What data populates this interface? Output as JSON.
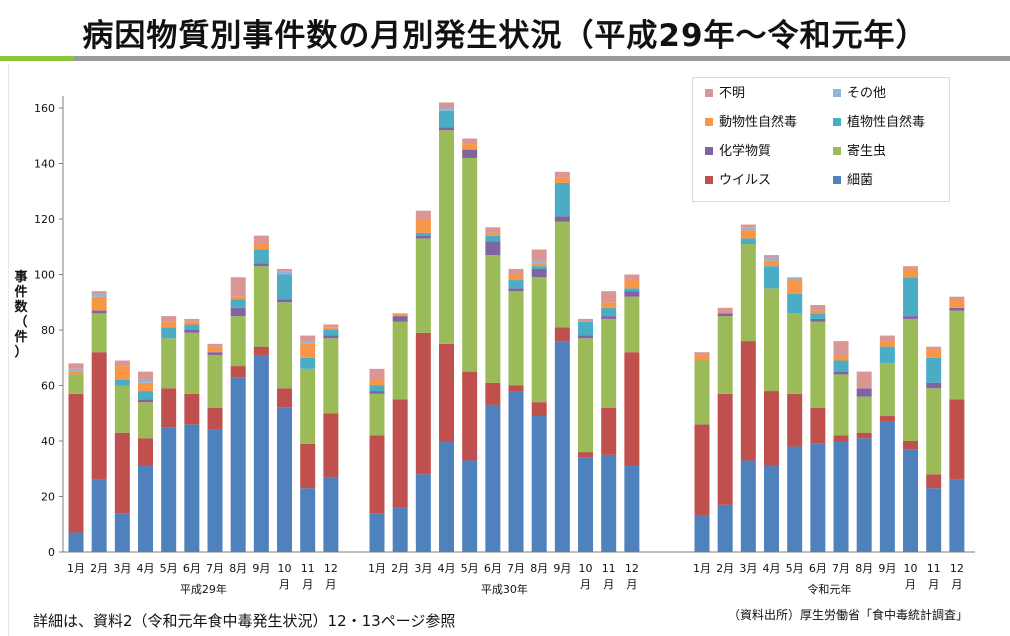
{
  "title": "病因物質別事件数の月別発生状況（平成29年～令和元年）",
  "colors": {
    "brand_green": "#8cc63f",
    "band_gray": "#9a9a9a"
  },
  "chart_data": {
    "type": "bar",
    "stacked": true,
    "ylabel": "事件数（件）",
    "ylim": [
      0,
      160
    ],
    "yticks": [
      0,
      20,
      40,
      60,
      80,
      100,
      120,
      140,
      160
    ],
    "legend_position": "top-right",
    "month_labels": [
      "1月",
      "2月",
      "3月",
      "4月",
      "5月",
      "6月",
      "7月",
      "8月",
      "9月",
      "10\n月",
      "11\n月",
      "12\n月"
    ],
    "groups": [
      {
        "label": "平成29年",
        "series_values": {
          "細菌": [
            7,
            26,
            14,
            31,
            45,
            46,
            44,
            63,
            71,
            52,
            23,
            27
          ],
          "ウイルス": [
            50,
            46,
            29,
            10,
            14,
            11,
            8,
            4,
            3,
            7,
            16,
            23
          ],
          "寄生虫": [
            7,
            14,
            17,
            13,
            18,
            22,
            19,
            18,
            29,
            31,
            27,
            27
          ],
          "化学物質": [
            0,
            1,
            0,
            1,
            0,
            1,
            1,
            3,
            1,
            1,
            0,
            1
          ],
          "植物性自然毒": [
            0,
            0,
            2,
            3,
            4,
            2,
            0,
            3,
            5,
            9,
            4,
            2
          ],
          "動物性自然毒": [
            1,
            5,
            5,
            3,
            2,
            1,
            2,
            1,
            2,
            0,
            5,
            1
          ],
          "その他": [
            1,
            1,
            0,
            1,
            0,
            0,
            0,
            0,
            0,
            1,
            1,
            0
          ],
          "不明": [
            2,
            1,
            2,
            3,
            2,
            1,
            1,
            7,
            3,
            1,
            2,
            1
          ]
        }
      },
      {
        "label": "平成30年",
        "series_values": {
          "細菌": [
            14,
            16,
            28,
            40,
            33,
            53,
            58,
            49,
            76,
            34,
            35,
            31
          ],
          "ウイルス": [
            28,
            39,
            51,
            35,
            32,
            8,
            2,
            5,
            5,
            2,
            17,
            41
          ],
          "寄生虫": [
            15,
            28,
            34,
            77,
            77,
            46,
            34,
            45,
            38,
            41,
            32,
            20
          ],
          "化学物質": [
            1,
            2,
            1,
            1,
            3,
            5,
            1,
            3,
            2,
            1,
            1,
            2
          ],
          "植物性自然毒": [
            2,
            0,
            1,
            6,
            0,
            2,
            3,
            1,
            12,
            5,
            3,
            1
          ],
          "動物性自然毒": [
            2,
            1,
            5,
            0,
            2,
            1,
            2,
            1,
            2,
            0,
            2,
            3
          ],
          "その他": [
            0,
            0,
            0,
            1,
            0,
            0,
            0,
            1,
            0,
            0,
            0,
            0
          ],
          "不明": [
            4,
            0,
            3,
            2,
            2,
            2,
            2,
            4,
            2,
            1,
            4,
            2
          ]
        }
      },
      {
        "label": "令和元年",
        "series_values": {
          "細菌": [
            13,
            17,
            33,
            31,
            38,
            39,
            40,
            41,
            47,
            37,
            23,
            26
          ],
          "ウイルス": [
            33,
            40,
            43,
            27,
            19,
            13,
            2,
            2,
            2,
            3,
            5,
            29
          ],
          "寄生虫": [
            23,
            28,
            35,
            37,
            29,
            31,
            22,
            13,
            19,
            44,
            31,
            32
          ],
          "化学物質": [
            0,
            1,
            0,
            0,
            0,
            1,
            1,
            3,
            0,
            1,
            2,
            1
          ],
          "植物性自然毒": [
            0,
            0,
            2,
            8,
            7,
            2,
            4,
            0,
            6,
            14,
            9,
            0
          ],
          "動物性自然毒": [
            2,
            0,
            3,
            2,
            5,
            1,
            2,
            0,
            2,
            3,
            3,
            3
          ],
          "その他": [
            0,
            0,
            1,
            1,
            1,
            0,
            0,
            0,
            0,
            0,
            0,
            0
          ],
          "不明": [
            1,
            2,
            1,
            1,
            0,
            2,
            5,
            6,
            2,
            1,
            1,
            1
          ]
        }
      }
    ],
    "series": [
      {
        "name": "細菌",
        "color": "#4f81bd"
      },
      {
        "name": "ウイルス",
        "color": "#c0504d"
      },
      {
        "name": "寄生虫",
        "color": "#9bbb59"
      },
      {
        "name": "化学物質",
        "color": "#8064a2"
      },
      {
        "name": "植物性自然毒",
        "color": "#4bacc6"
      },
      {
        "name": "動物性自然毒",
        "color": "#f79646"
      },
      {
        "name": "その他",
        "color": "#95b3d7"
      },
      {
        "name": "不明",
        "color": "#d99694"
      }
    ],
    "legend_order": [
      "不明",
      "その他",
      "動物性自然毒",
      "植物性自然毒",
      "化学物質",
      "寄生虫",
      "ウイルス",
      "細菌"
    ]
  },
  "footnote_left": "詳細は、資料2（令和元年食中毒発生状況）12・13ページ参照",
  "footnote_right": "（資料出所）厚生労働省「食中毒統計調査」"
}
